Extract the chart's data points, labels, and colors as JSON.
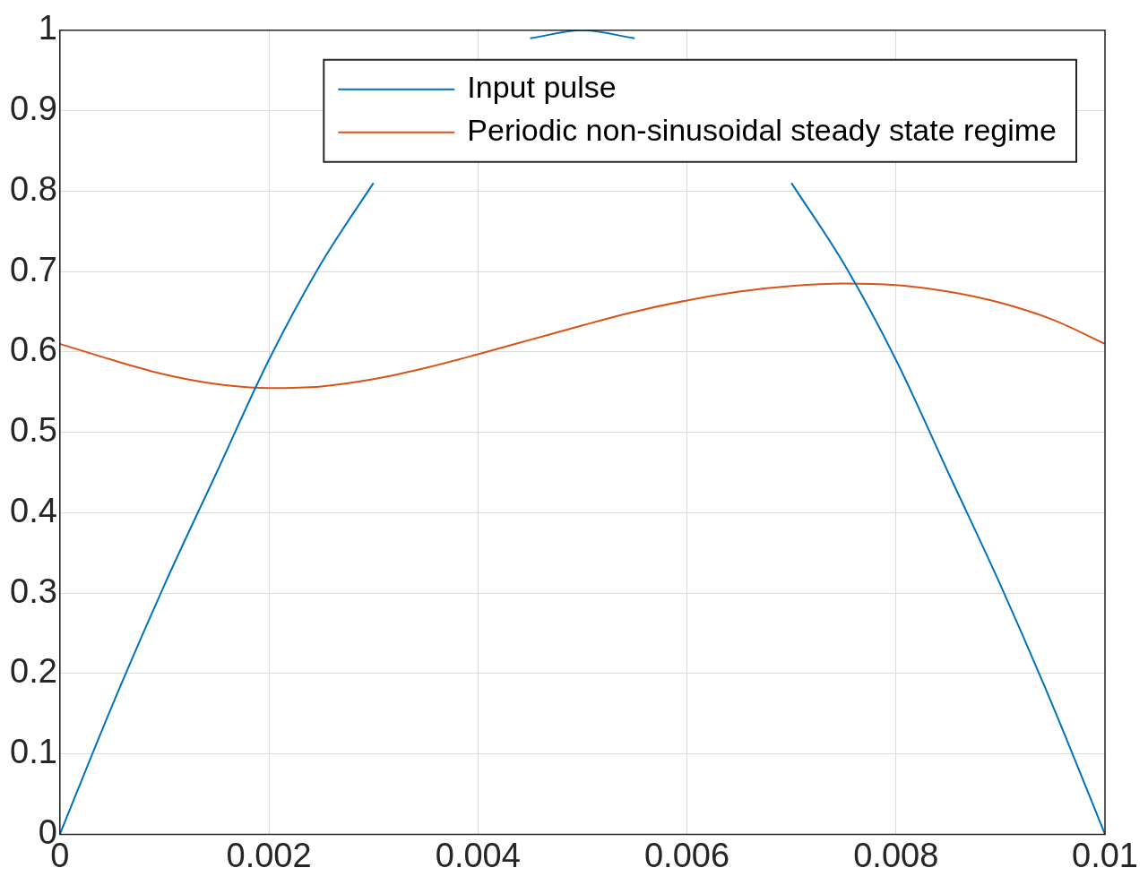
{
  "chart_data": {
    "type": "line",
    "x": [
      0,
      0.0005,
      0.001,
      0.0015,
      0.002,
      0.0025,
      0.003,
      0.0035,
      0.004,
      0.0045,
      0.005,
      0.0055,
      0.006,
      0.0065,
      0.007,
      0.0075,
      0.008,
      0.0085,
      0.009,
      0.0095,
      0.01
    ],
    "series": [
      {
        "name": "Input pulse",
        "color": "#0072bd",
        "values": [
          0,
          0.16,
          0.31,
          0.45,
          0.59,
          0.71,
          0.81,
          null,
          null,
          0.99,
          1,
          0.99,
          null,
          null,
          0.81,
          0.71,
          0.59,
          0.45,
          0.31,
          0.16,
          0
        ]
      },
      {
        "name": "Periodic non-sinusoidal steady state regime",
        "color": "#d95319",
        "values": [
          0.61,
          0.59,
          0.572,
          0.56,
          0.555,
          0.557,
          0.566,
          0.58,
          0.597,
          0.615,
          0.633,
          0.65,
          0.664,
          0.675,
          0.682,
          0.685,
          0.683,
          0.675,
          0.661,
          0.64,
          0.61
        ]
      }
    ],
    "xlim": [
      0,
      0.01
    ],
    "xticks": [
      0,
      0.002,
      0.004,
      0.006,
      0.008,
      0.01
    ],
    "ylim": [
      0,
      1
    ],
    "yticks": [
      0,
      0.1,
      0.2,
      0.3,
      0.4,
      0.5,
      0.6,
      0.7,
      0.8,
      0.9,
      1
    ],
    "grid": true,
    "legend": "top right",
    "line_style": "solid",
    "marker": "none"
  }
}
